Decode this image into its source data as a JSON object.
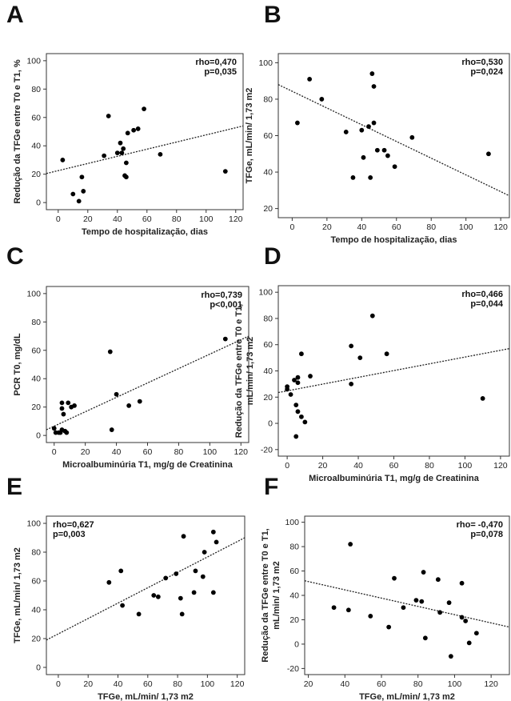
{
  "chart_data": [
    {
      "id": "A",
      "type": "scatter",
      "xlabel": "Tempo de hospitalização, dias",
      "ylabel": "Redução da TFGe entre T0 e T1, %",
      "ylabel_lines": [
        "Redução da TFGe entre T0 e T1, %"
      ],
      "xticks": [
        0,
        20,
        40,
        60,
        80,
        100,
        120
      ],
      "yticks": [
        0,
        20,
        40,
        60,
        80,
        100
      ],
      "xlim": [
        -8,
        125
      ],
      "ylim": [
        -5,
        105
      ],
      "stat_lines": [
        "rho=0,470",
        "p=0,035"
      ],
      "stat_pos": "top-right",
      "fit": [
        [
          -8,
          20.5
        ],
        [
          125,
          54
        ]
      ],
      "points": [
        [
          3,
          30
        ],
        [
          10,
          6
        ],
        [
          14,
          1
        ],
        [
          16,
          18
        ],
        [
          17,
          8
        ],
        [
          31,
          33
        ],
        [
          34,
          61
        ],
        [
          40,
          35
        ],
        [
          42,
          42
        ],
        [
          43,
          35
        ],
        [
          44,
          38
        ],
        [
          45,
          19
        ],
        [
          46,
          28
        ],
        [
          46,
          18
        ],
        [
          47,
          49
        ],
        [
          51,
          51
        ],
        [
          54,
          52
        ],
        [
          58,
          66
        ],
        [
          69,
          34
        ],
        [
          113,
          22
        ]
      ]
    },
    {
      "id": "B",
      "type": "scatter",
      "xlabel": "Tempo de hospitalização, dias",
      "ylabel": "TFGe, mL/min/ 1,73 m2",
      "ylabel_lines": [
        "TFGe, mL/min/ 1,73 m2"
      ],
      "xticks": [
        0,
        20,
        40,
        60,
        80,
        100,
        120
      ],
      "yticks": [
        20,
        40,
        60,
        80,
        100
      ],
      "xlim": [
        -8,
        125
      ],
      "ylim": [
        15,
        105
      ],
      "stat_lines": [
        "rho=0,530",
        "p=0,024"
      ],
      "stat_pos": "top-right",
      "fit": [
        [
          -8,
          88
        ],
        [
          125,
          27
        ]
      ],
      "points": [
        [
          3,
          67
        ],
        [
          10,
          91
        ],
        [
          17,
          80
        ],
        [
          31,
          62
        ],
        [
          35,
          37
        ],
        [
          40,
          63
        ],
        [
          41,
          48
        ],
        [
          44,
          65
        ],
        [
          45,
          37
        ],
        [
          46,
          94
        ],
        [
          47,
          67
        ],
        [
          47,
          87
        ],
        [
          49,
          52
        ],
        [
          53,
          52
        ],
        [
          55,
          49
        ],
        [
          59,
          43
        ],
        [
          69,
          59
        ],
        [
          113,
          50
        ]
      ]
    },
    {
      "id": "C",
      "type": "scatter",
      "xlabel": "Microalbuminúria T1, mg/g de Creatinina",
      "ylabel": "PCR T0, mg/dL",
      "ylabel_lines": [
        "PCR T0, mg/dL"
      ],
      "xticks": [
        0,
        20,
        40,
        60,
        80,
        100,
        120
      ],
      "yticks": [
        0,
        20,
        40,
        60,
        80,
        100
      ],
      "xlim": [
        -5,
        125
      ],
      "ylim": [
        -5,
        105
      ],
      "stat_lines": [
        "rho=0,739",
        "p<0,001"
      ],
      "stat_pos": "top-right",
      "fit": [
        [
          -5,
          4
        ],
        [
          125,
          70
        ]
      ],
      "points": [
        [
          0,
          5
        ],
        [
          1,
          2
        ],
        [
          3,
          2
        ],
        [
          4,
          2
        ],
        [
          5,
          4
        ],
        [
          5,
          23
        ],
        [
          5,
          19
        ],
        [
          6,
          15
        ],
        [
          7,
          3
        ],
        [
          8,
          2
        ],
        [
          9,
          23
        ],
        [
          11,
          20
        ],
        [
          13,
          21
        ],
        [
          36,
          59
        ],
        [
          37,
          4
        ],
        [
          40,
          29
        ],
        [
          48,
          21
        ],
        [
          55,
          24
        ],
        [
          110,
          68
        ]
      ]
    },
    {
      "id": "D",
      "type": "scatter",
      "xlabel": "Microalbuminúria T1, mg/g de Creatinina",
      "ylabel": "Redução da TFGe entre T0 e T1, mL/min/ 1,73 m2",
      "ylabel_lines": [
        "Redução da TFGe entre T0 e T1,",
        "mL/min/ 1,73 m2"
      ],
      "xticks": [
        0,
        20,
        40,
        60,
        80,
        100,
        120
      ],
      "yticks": [
        -20,
        0,
        20,
        40,
        60,
        80,
        100
      ],
      "xlim": [
        -5,
        125
      ],
      "ylim": [
        -25,
        105
      ],
      "stat_lines": [
        "rho=0,466",
        "p=0,044"
      ],
      "stat_pos": "top-right",
      "fit": [
        [
          -5,
          23.5
        ],
        [
          125,
          57
        ]
      ],
      "points": [
        [
          0,
          26
        ],
        [
          0,
          28
        ],
        [
          2,
          22
        ],
        [
          4,
          33
        ],
        [
          5,
          14
        ],
        [
          5,
          -10
        ],
        [
          6,
          35
        ],
        [
          6,
          9
        ],
        [
          6,
          31
        ],
        [
          8,
          5
        ],
        [
          8,
          53
        ],
        [
          10,
          1
        ],
        [
          13,
          36
        ],
        [
          36,
          59
        ],
        [
          36,
          30
        ],
        [
          41,
          50
        ],
        [
          48,
          82
        ],
        [
          56,
          53
        ],
        [
          110,
          19
        ]
      ]
    },
    {
      "id": "E",
      "type": "scatter",
      "xlabel": "TFGe, mL/min/ 1,73 m2",
      "ylabel": "TFGe, mL/min/ 1,73 m2",
      "ylabel_lines": [
        "TFGe, mL/min/ 1,73 m2"
      ],
      "xticks": [
        0,
        20,
        40,
        60,
        80,
        100,
        120
      ],
      "yticks": [
        0,
        20,
        40,
        60,
        80,
        100
      ],
      "xlim": [
        -8,
        125
      ],
      "ylim": [
        -5,
        105
      ],
      "stat_lines": [
        "rho=0,627",
        "p=0,003"
      ],
      "stat_pos": "top-left",
      "fit": [
        [
          -8,
          19
        ],
        [
          125,
          90
        ]
      ],
      "points": [
        [
          34,
          59
        ],
        [
          42,
          67
        ],
        [
          43,
          43
        ],
        [
          54,
          37
        ],
        [
          64,
          50
        ],
        [
          67,
          49
        ],
        [
          72,
          62
        ],
        [
          79,
          65
        ],
        [
          82,
          48
        ],
        [
          83,
          37
        ],
        [
          84,
          91
        ],
        [
          91,
          52
        ],
        [
          92,
          67
        ],
        [
          97,
          63
        ],
        [
          98,
          80
        ],
        [
          104,
          52
        ],
        [
          104,
          94
        ],
        [
          106,
          87
        ]
      ]
    },
    {
      "id": "F",
      "type": "scatter",
      "xlabel": "TFGe, mL/min/ 1,73 m2",
      "ylabel": "Redução da TFGe entre T0 e T1, mL/min/ 1,73 m2",
      "ylabel_lines": [
        "Redução da TFGe entre T0 e T1,",
        "mL/min/ 1,73 m2"
      ],
      "xticks": [
        20,
        40,
        60,
        80,
        100,
        120
      ],
      "yticks": [
        -20,
        0,
        20,
        40,
        60,
        80,
        100
      ],
      "xlim": [
        18,
        130
      ],
      "ylim": [
        -25,
        105
      ],
      "stat_lines": [
        "rho= -0,470",
        "p=0,078"
      ],
      "stat_pos": "top-right",
      "fit": [
        [
          18,
          52
        ],
        [
          130,
          14
        ]
      ],
      "points": [
        [
          34,
          30
        ],
        [
          42,
          28
        ],
        [
          43,
          82
        ],
        [
          54,
          23
        ],
        [
          64,
          14
        ],
        [
          67,
          54
        ],
        [
          72,
          30
        ],
        [
          79,
          36
        ],
        [
          82,
          35
        ],
        [
          83,
          59
        ],
        [
          84,
          5
        ],
        [
          91,
          53
        ],
        [
          92,
          26
        ],
        [
          97,
          34
        ],
        [
          98,
          -10
        ],
        [
          104,
          22
        ],
        [
          104,
          50
        ],
        [
          106,
          19
        ],
        [
          108,
          1
        ],
        [
          112,
          9
        ]
      ]
    }
  ]
}
